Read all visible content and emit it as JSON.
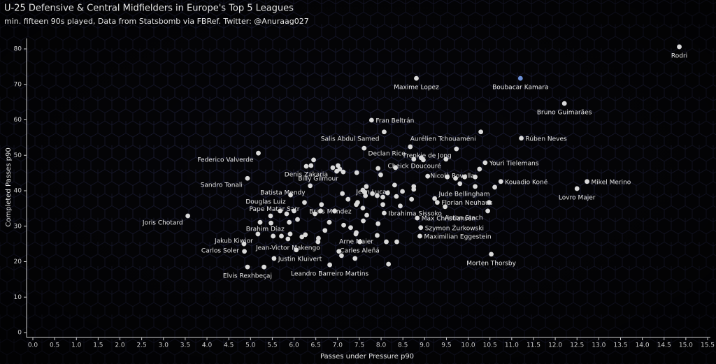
{
  "chart_data": {
    "type": "scatter",
    "title": "U-25 Defensive & Central Midfielders in Europe's Top 5 Leagues",
    "subtitle": "min. fifteen 90s played, Data from Statsbomb via FBRef. Twitter: @Anuraag027",
    "x_label": "Passes under Pressure p90",
    "y_label": "Completed Passes p90",
    "xlim": [
      0,
      15.5
    ],
    "ylim": [
      0,
      80
    ],
    "xticks": [
      {
        "value": 0,
        "label": "0.0"
      },
      0.5,
      {
        "value": 1,
        "label": "1.0"
      },
      1.5,
      {
        "value": 2,
        "label": "2.0"
      },
      2.5,
      {
        "value": 3,
        "label": "3.0"
      },
      3.5,
      {
        "value": 4,
        "label": "4.0"
      },
      4.5,
      {
        "value": 5,
        "label": "5.0"
      },
      5.5,
      {
        "value": 6,
        "label": "6.0"
      },
      6.5,
      {
        "value": 7,
        "label": "7.0"
      },
      7.5,
      {
        "value": 8,
        "label": "8.0"
      },
      8.5,
      {
        "value": 9,
        "label": "9.0"
      },
      9.5,
      {
        "value": 10,
        "label": "10.0"
      },
      10.5,
      {
        "value": 11,
        "label": "11.0"
      },
      11.5,
      {
        "value": 12,
        "label": "12.0"
      },
      12.5,
      {
        "value": 13,
        "label": "13.0"
      },
      13.5,
      {
        "value": 14,
        "label": "14.0"
      },
      14.5,
      {
        "value": 15,
        "label": "15.0"
      },
      15.5
    ],
    "yticks": [
      0,
      10,
      20,
      30,
      40,
      50,
      60,
      70,
      80
    ],
    "series": [
      {
        "color": "#d9d9d9",
        "x": [
          14.85,
          8.81,
          12.21,
          7.78,
          8.07,
          10.29,
          11.22,
          8.67,
          9.73,
          5.18,
          6.89,
          9.49,
          10.39,
          10.26,
          7.13,
          4.93,
          10.75,
          12.73,
          6.37,
          12.5,
          8.31,
          10.61,
          5.92,
          6.24,
          9.29,
          7.43,
          3.56,
          8.83,
          10.45,
          8.07,
          5.89,
          8.91,
          5.17,
          7.43,
          8.89,
          4.85,
          5.86,
          7.51,
          5.54,
          10.53,
          4.93,
          6.82,
          6.45,
          6.39,
          6.28,
          7.01,
          7.05,
          6.98,
          7.44,
          7.93,
          7.99,
          8.33,
          7.61,
          8.75,
          8.92,
          8.97,
          9.52,
          9.71,
          9.92,
          10.16,
          9.81,
          10.16,
          9.07,
          8.75,
          8.75,
          8.49,
          7.66,
          7.58,
          7.62,
          7.8,
          7.91,
          8.04,
          8.15,
          8.35,
          8.7,
          9.23,
          9.47,
          7.64,
          7.11,
          7.24,
          7.46,
          7.58,
          7.67,
          8.04,
          8.44,
          7.59,
          7.3,
          7.93,
          7.42,
          7.14,
          6.81,
          6.71,
          6.56,
          6.18,
          6.26,
          5.91,
          5.71,
          5.52,
          5.46,
          5.68,
          5.83,
          6.0,
          6.08,
          6.61,
          6.63,
          6.93,
          6.48,
          5.47,
          5.22,
          4.86,
          6.05,
          6.55,
          7.03,
          7.09,
          5.31,
          8.36,
          8.12,
          7.91,
          7.4,
          8.17,
          10.48
        ],
        "y": [
          80.6,
          71.7,
          64.6,
          59.9,
          56.6,
          56.6,
          54.8,
          52.4,
          51.8,
          50.6,
          46.5,
          48.9,
          47.9,
          46.1,
          45.3,
          43.5,
          42.6,
          42.6,
          41.4,
          40.6,
          41.6,
          41.0,
          38.8,
          36.7,
          36.7,
          36.1,
          32.9,
          32.3,
          34.3,
          33.7,
          31.1,
          29.6,
          27.8,
          28.2,
          27.2,
          25.0,
          26.4,
          25.6,
          20.9,
          22.1,
          18.5,
          19.1,
          48.7,
          47.1,
          46.9,
          47.1,
          46.1,
          45.5,
          45.1,
          46.3,
          44.5,
          46.5,
          52.0,
          48.9,
          49.3,
          48.7,
          43.9,
          43.5,
          43.9,
          43.9,
          42.0,
          41.2,
          44.1,
          41.2,
          40.4,
          39.8,
          41.2,
          40.2,
          39.6,
          39.2,
          38.6,
          38.2,
          39.4,
          38.4,
          37.6,
          37.8,
          35.5,
          38.6,
          39.2,
          37.6,
          36.7,
          35.1,
          33.1,
          36.1,
          35.7,
          31.5,
          29.6,
          30.7,
          27.8,
          30.3,
          31.1,
          28.8,
          26.6,
          27.0,
          27.6,
          27.8,
          27.2,
          27.2,
          32.9,
          34.3,
          33.5,
          34.3,
          31.9,
          34.3,
          36.1,
          34.3,
          33.5,
          30.9,
          31.1,
          22.9,
          23.3,
          25.6,
          22.9,
          21.7,
          18.5,
          25.6,
          25.6,
          27.4,
          20.9,
          19.3,
          36.7
        ],
        "labels": [
          "Rodri",
          "Maxime Lopez",
          "Bruno Guimarães",
          "Fran Beltrán",
          "Salis Abdul Samed",
          "Aurélien Tchouaméni",
          "Rúben Neves",
          "Declan Rice",
          "Frenkie de Jong",
          "Federico Valverde",
          "Denis Zakaria",
          "Cheick Doucouré",
          "Youri Tielemans",
          "Nicolò Rovella",
          "Billy Gilmour",
          "Sandro Tonali",
          "Kouadio Koné",
          "Mikel Merino",
          "Batista Mendy",
          "Lovro Majer",
          "Jean Lucas",
          "Jude Bellingham",
          "Douglas Luiz",
          "Pape Matar Sarr",
          "Florian Neuhaus",
          "Brais Méndez",
          "Joris Chotard",
          "Max Christiansen",
          "Anton Stach",
          "Ibrahima Sissoko",
          "Brahim Díaz",
          "Szymon Żurkowski",
          "Jakub Kiwior",
          "Arne Maier",
          "Maximilian Eggestein",
          "Carlos Soler",
          "Jean-Victor Makengo",
          "Carles Aleñá",
          "Justin Kluivert",
          "Morten Thorsby",
          "Elvis Rexhbeçaj",
          "Leandro Barreiro Martins",
          null,
          null,
          null,
          null,
          null,
          null,
          null,
          null,
          null,
          null,
          null,
          null,
          null,
          null,
          null,
          null,
          null,
          null,
          null,
          null,
          null,
          null,
          null,
          null,
          null,
          null,
          null,
          null,
          null,
          null,
          null,
          null,
          null,
          null,
          null,
          null,
          null,
          null,
          null,
          null,
          null,
          null,
          null,
          null,
          null,
          null,
          null,
          null,
          null,
          null,
          null,
          null,
          null,
          null,
          null,
          null,
          null,
          null,
          null,
          null,
          null,
          null,
          null,
          null,
          null,
          null,
          null,
          null,
          null,
          null,
          null,
          null,
          null,
          null,
          null,
          null,
          null
        ]
      },
      {
        "color": "#6b8fd6",
        "x": [
          11.2
        ],
        "y": [
          71.7
        ],
        "labels": [
          "Boubacar Kamara"
        ]
      }
    ]
  }
}
